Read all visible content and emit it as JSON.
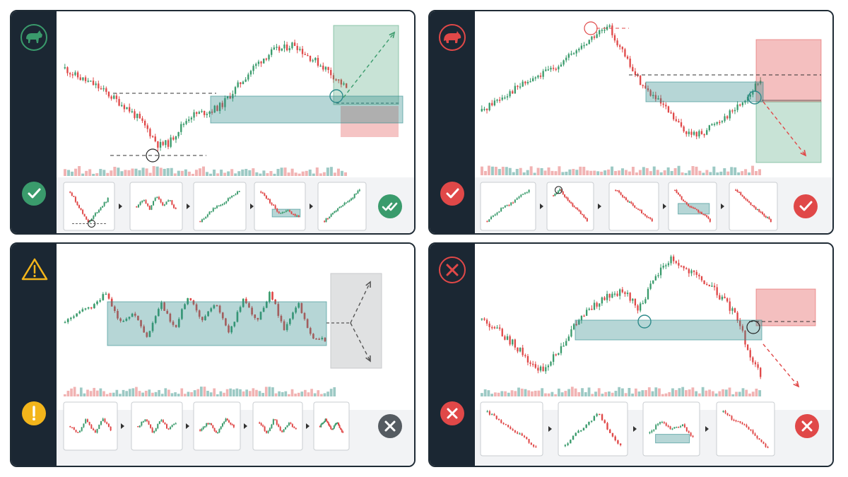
{
  "colors": {
    "bull": "#3a9b6c",
    "bear": "#e04848",
    "warn": "#f3b51b",
    "zone": "#2d8a8a",
    "frame": "#1b2733",
    "neutral": "#555b61"
  },
  "panels": [
    {
      "id": "bull-reversal",
      "status": "success",
      "top_icon": "bull-icon",
      "left_badge": "check-circle-icon",
      "right_badge": "double-check-circle-icon",
      "thumbnail_count": 5,
      "chart_data": {
        "type": "candlestick",
        "shape": [
          0.78,
          0.72,
          0.68,
          0.64,
          0.58,
          0.52,
          0.46,
          0.38,
          0.28,
          0.16,
          0.18,
          0.3,
          0.4,
          0.42,
          0.44,
          0.48,
          0.58,
          0.68,
          0.78,
          0.86,
          0.92,
          0.94,
          0.98,
          0.9,
          0.84,
          0.78,
          0.7,
          0.62
        ],
        "levels": [
          "support-line",
          "neckline",
          "entry-circle",
          "reversal-circle"
        ],
        "zone": "demand-zone",
        "targets": {
          "profit": "upper",
          "stop": "lower"
        },
        "arrow": "up"
      }
    },
    {
      "id": "bear-reversal",
      "status": "success",
      "top_icon": "bear-icon",
      "left_badge": "check-circle-icon",
      "right_badge": "check-circle-icon",
      "thumbnail_count": 5,
      "chart_data": {
        "type": "candlestick",
        "shape": [
          0.3,
          0.38,
          0.44,
          0.5,
          0.55,
          0.6,
          0.66,
          0.72,
          0.8,
          0.88,
          0.96,
          1.0,
          0.82,
          0.64,
          0.5,
          0.4,
          0.3,
          0.18,
          0.1,
          0.12,
          0.2,
          0.26,
          0.34,
          0.44,
          0.56
        ],
        "levels": [
          "peak-circle",
          "resistance-line",
          "entry-circle"
        ],
        "zone": "supply-zone",
        "targets": {
          "profit": "lower",
          "stop": "upper"
        },
        "arrow": "down"
      }
    },
    {
      "id": "range-warning",
      "status": "warning",
      "top_icon": "warning-triangle-icon",
      "left_badge": "exclamation-circle-icon",
      "right_badge": "x-circle-icon",
      "thumbnail_count": 5,
      "chart_data": {
        "type": "candlestick",
        "shape": [
          0.4,
          0.55,
          0.62,
          0.85,
          0.4,
          0.55,
          0.2,
          0.7,
          0.3,
          0.8,
          0.4,
          0.7,
          0.25,
          0.75,
          0.4,
          0.85,
          0.3,
          0.7,
          0.2,
          0.15
        ],
        "levels": [],
        "zone": "range-zone",
        "targets": {
          "profit": "none",
          "stop": "none"
        },
        "arrow": "both"
      }
    },
    {
      "id": "failed-breakout",
      "status": "failure",
      "top_icon": "x-icon",
      "left_badge": "x-circle-icon",
      "right_badge": "x-circle-icon",
      "thumbnail_count": 4,
      "chart_data": {
        "type": "candlestick",
        "shape": [
          0.5,
          0.44,
          0.36,
          0.28,
          0.18,
          0.06,
          0.12,
          0.26,
          0.4,
          0.52,
          0.6,
          0.66,
          0.72,
          0.7,
          0.58,
          0.74,
          0.9,
          1.0,
          0.92,
          0.86,
          0.8,
          0.72,
          0.62,
          0.5,
          0.2,
          0.05
        ],
        "levels": [
          "break-circle",
          "entry-circle",
          "stop-line"
        ],
        "zone": "failed-zone",
        "targets": {
          "profit": "none",
          "stop": "upper"
        },
        "arrow": "down"
      }
    }
  ]
}
